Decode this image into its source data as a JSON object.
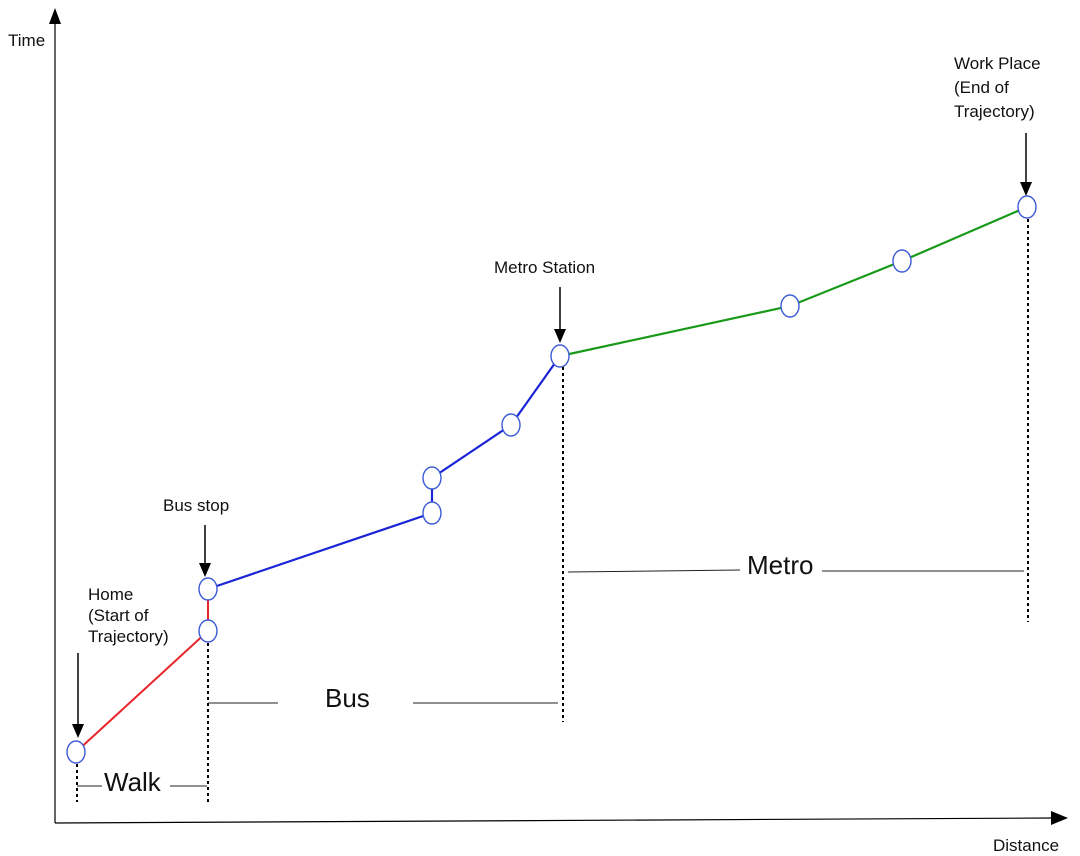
{
  "axes": {
    "y_label": "Time",
    "x_label": "Distance"
  },
  "colors": {
    "walk": "#e8252b",
    "bus": "#1a25d6",
    "metro": "#1a9a1a",
    "point_stroke": "#3b5bd6"
  },
  "annotations": {
    "home": [
      "Home",
      "(Start of",
      "Trajectory)"
    ],
    "bus_stop": "Bus stop",
    "metro_station": "Metro Station",
    "work_place": [
      "Work Place",
      "(End of",
      "Trajectory)"
    ]
  },
  "segments": {
    "walk": "Walk",
    "bus": "Bus",
    "metro": "Metro"
  }
}
